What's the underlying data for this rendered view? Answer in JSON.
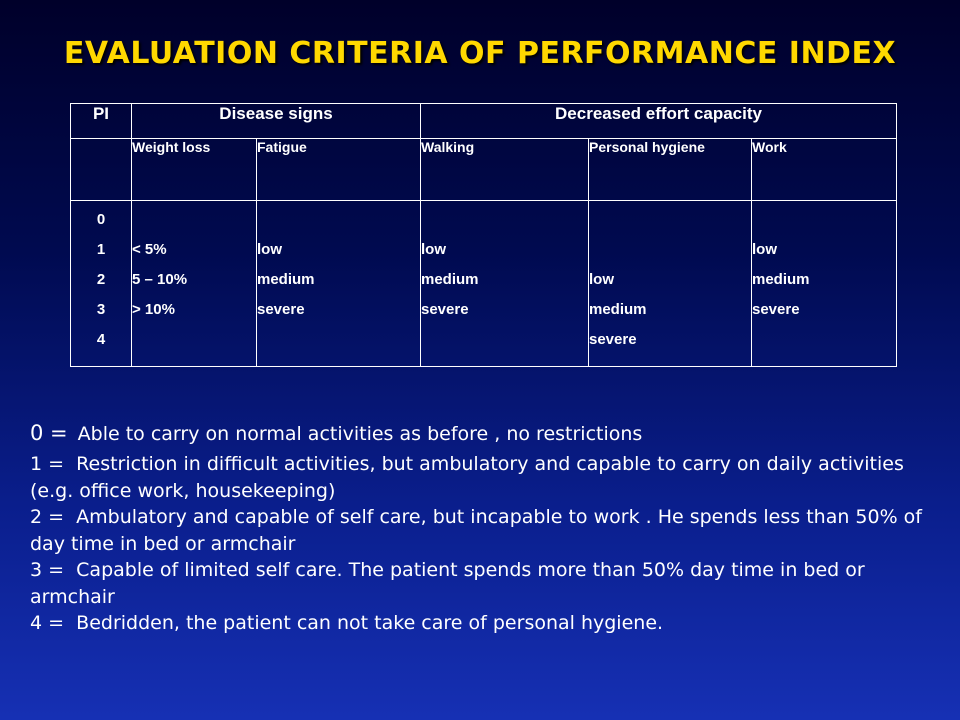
{
  "title": "EVALUATION CRITERIA OF PERFORMANCE INDEX",
  "table": {
    "header": {
      "pi": "PI",
      "disease": "Disease signs",
      "effort": "Decreased effort capacity"
    },
    "subheader": [
      "Weight loss",
      "Fatigue",
      "Walking",
      "Personal hygiene",
      "Work"
    ],
    "pi_values": [
      "0",
      "1",
      "2",
      "3",
      "4"
    ],
    "weight_loss": [
      "< 5%",
      "5 – 10%",
      "> 10%"
    ],
    "fatigue": [
      "low",
      "medium",
      "severe"
    ],
    "walking": [
      "low",
      "medium",
      "severe"
    ],
    "personal_hygiene": [
      "low",
      "medium",
      "severe"
    ],
    "work": [
      "low",
      "medium",
      "severe"
    ]
  },
  "notes": [
    {
      "code": "0 =",
      "text": "Able to carry on normal activities as before , no restrictions"
    },
    {
      "code": "1 =",
      "text": "Restriction in difficult activities, but ambulatory and capable to carry on daily activities (e.g. office work, housekeeping)"
    },
    {
      "code": "2 =",
      "text": "Ambulatory and  capable of self care, but incapable to work . He spends less than 50% of day time in bed or armchair"
    },
    {
      "code": "3 =",
      "text": "Capable of limited self care. The patient spends more than 50% day time in bed or armchair"
    },
    {
      "code": "4 =",
      "text": "Bedridden, the patient can not take care of personal hygiene."
    }
  ]
}
